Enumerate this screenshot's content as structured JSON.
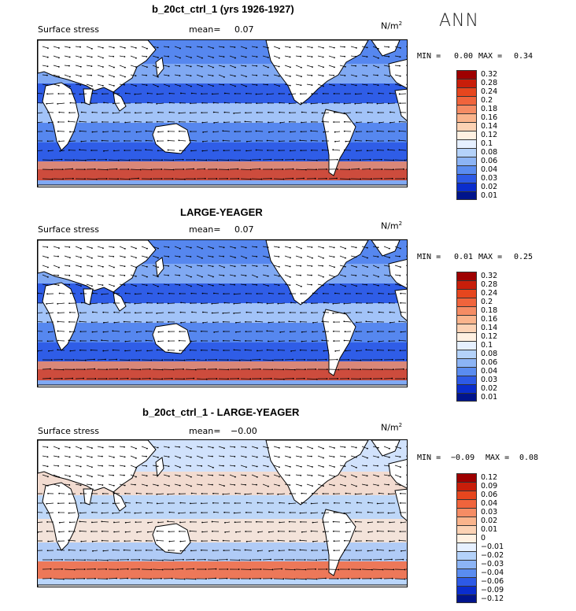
{
  "season": "ANN",
  "chart_data": [
    {
      "type": "heatmap",
      "title": "b_20ct_ctrl_1 (yrs 1926-1927)",
      "field_label": "Surface stress",
      "mean_label": "mean=",
      "mean_value": "0.07",
      "units": "N/m",
      "units_exp": "2",
      "min_label": "MIN =",
      "min_value": "0.00",
      "max_label": "MAX =",
      "max_value": "0.34",
      "colorbar_levels": [
        "0.32",
        "0.28",
        "0.24",
        "0.2",
        "0.18",
        "0.16",
        "0.14",
        "0.12",
        "0.1",
        "0.08",
        "0.06",
        "0.04",
        "0.03",
        "0.02",
        "0.01"
      ],
      "colorbar_colors": [
        "#9e0000",
        "#c81e0a",
        "#e6461e",
        "#f0643c",
        "#f58c64",
        "#fab48c",
        "#fcd2b4",
        "#fff0e1",
        "#e6f0ff",
        "#b4d2fa",
        "#8cb4f5",
        "#5a8cf0",
        "#2d5ae6",
        "#0a2dcd",
        "#00148c"
      ]
    },
    {
      "type": "heatmap",
      "title": "LARGE-YEAGER",
      "field_label": "Surface stress",
      "mean_label": "mean=",
      "mean_value": "0.07",
      "units": "N/m",
      "units_exp": "2",
      "min_label": "MIN =",
      "min_value": "0.01",
      "max_label": "MAX =",
      "max_value": "0.25",
      "colorbar_levels": [
        "0.32",
        "0.28",
        "0.24",
        "0.2",
        "0.18",
        "0.16",
        "0.14",
        "0.12",
        "0.1",
        "0.08",
        "0.06",
        "0.04",
        "0.03",
        "0.02",
        "0.01"
      ],
      "colorbar_colors": [
        "#9e0000",
        "#c81e0a",
        "#e6461e",
        "#f0643c",
        "#f58c64",
        "#fab48c",
        "#fcd2b4",
        "#fff0e1",
        "#e6f0ff",
        "#b4d2fa",
        "#8cb4f5",
        "#5a8cf0",
        "#2d5ae6",
        "#0a2dcd",
        "#00148c"
      ]
    },
    {
      "type": "heatmap",
      "title": "b_20ct_ctrl_1 - LARGE-YEAGER",
      "field_label": "Surface stress",
      "mean_label": "mean=",
      "mean_value": "−0.00",
      "units": "N/m",
      "units_exp": "2",
      "min_label": "MIN =",
      "min_value": "−0.09",
      "max_label": "MAX =",
      "max_value": "0.08",
      "colorbar_levels": [
        "0.12",
        "0.09",
        "0.06",
        "0.04",
        "0.03",
        "0.02",
        "0.01",
        "0",
        "−0.01",
        "−0.02",
        "−0.03",
        "−0.04",
        "−0.06",
        "−0.09",
        "−0.12"
      ],
      "colorbar_colors": [
        "#9e0000",
        "#c81e0a",
        "#e6461e",
        "#f0643c",
        "#f58c64",
        "#fab48c",
        "#fcd2b4",
        "#fff0e1",
        "#e6f0ff",
        "#b4d2fa",
        "#8cb4f5",
        "#5a8cf0",
        "#2d5ae6",
        "#0a2dcd",
        "#00148c"
      ]
    }
  ]
}
